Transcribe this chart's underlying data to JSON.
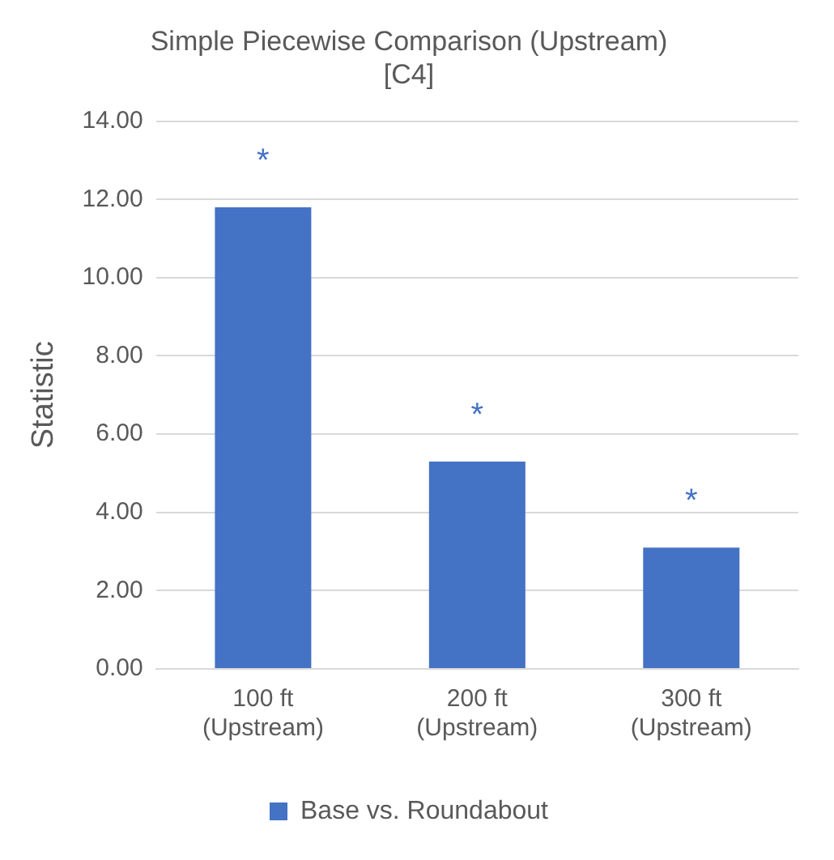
{
  "chart_data": {
    "type": "bar",
    "title": "Simple Piecewise Comparison (Upstream)\n[C4]",
    "ylabel": "Statistic",
    "categories": [
      "100 ft (Upstream)",
      "200 ft (Upstream)",
      "300 ft (Upstream)"
    ],
    "series": [
      {
        "name": "Base vs. Roundabout",
        "color": "#4472c4",
        "values": [
          11.8,
          5.3,
          3.1
        ]
      }
    ],
    "ylim": [
      0,
      14
    ],
    "yticks": [
      {
        "value": 0,
        "label": "0.00"
      },
      {
        "value": 2,
        "label": "2.00"
      },
      {
        "value": 4,
        "label": "4.00"
      },
      {
        "value": 6,
        "label": "6.00"
      },
      {
        "value": 8,
        "label": "8.00"
      },
      {
        "value": 10,
        "label": "10.00"
      },
      {
        "value": 12,
        "label": "12.00"
      },
      {
        "value": 14,
        "label": "14.00"
      }
    ],
    "annotations": [
      "*",
      "*",
      "*"
    ],
    "grid": "y",
    "legend": "bottom"
  }
}
